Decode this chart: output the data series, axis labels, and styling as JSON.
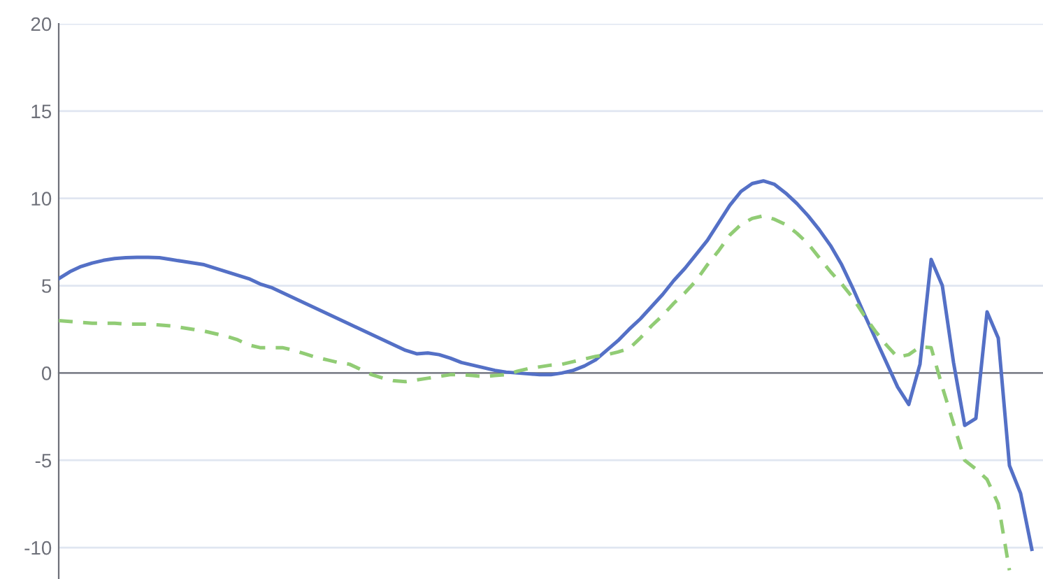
{
  "chart_data": {
    "type": "line",
    "relative": false,
    "categories": [
      null,
      null,
      null,
      null,
      null,
      null,
      null,
      null,
      null,
      null,
      null,
      null,
      null,
      null,
      null,
      null,
      null,
      null,
      null,
      null,
      null,
      null,
      null,
      null,
      null,
      null,
      null,
      null,
      null,
      null,
      null,
      null,
      null,
      null,
      null,
      null,
      null,
      null,
      null,
      null,
      null,
      null,
      null,
      null,
      null,
      null,
      null,
      null,
      null,
      null,
      null,
      null,
      null,
      null,
      null,
      null,
      null,
      null,
      null,
      null,
      null,
      null,
      null,
      null,
      null,
      null,
      null,
      null,
      null,
      null,
      null,
      null,
      null,
      null,
      null,
      null,
      null,
      null,
      null,
      null,
      null,
      null,
      null,
      null,
      null,
      null,
      null,
      null
    ],
    "series": [
      {
        "color": "#5470c6",
        "line_style": "solid",
        "values": [
          5.4,
          5.8,
          6.1,
          6.3,
          6.45,
          6.55,
          6.6,
          6.62,
          6.62,
          6.6,
          6.5,
          6.4,
          6.3,
          6.2,
          6.0,
          5.8,
          5.6,
          5.4,
          5.1,
          4.9,
          4.6,
          4.3,
          4.0,
          3.7,
          3.4,
          3.1,
          2.8,
          2.5,
          2.2,
          1.9,
          1.6,
          1.3,
          1.1,
          1.15,
          1.05,
          0.85,
          0.6,
          0.45,
          0.3,
          0.15,
          0.05,
          0.0,
          -0.05,
          -0.1,
          -0.1,
          0.0,
          0.15,
          0.4,
          0.75,
          1.3,
          1.85,
          2.5,
          3.1,
          3.8,
          4.5,
          5.3,
          6.0,
          6.8,
          7.6,
          8.6,
          9.6,
          10.4,
          10.85,
          11.0,
          10.8,
          10.3,
          9.7,
          9.0,
          8.2,
          7.3,
          6.2,
          4.85,
          3.4,
          2.0,
          0.6,
          -0.8,
          -1.8,
          0.5,
          6.5,
          5.0,
          0.6,
          -3.0,
          -2.6,
          3.5,
          2.0,
          -5.3,
          -6.9,
          -10.1
        ]
      },
      {
        "color": "#91cc75",
        "line_style": "dashed",
        "values": [
          3.0,
          2.95,
          2.9,
          2.85,
          2.85,
          2.85,
          2.8,
          2.8,
          2.8,
          2.75,
          2.7,
          2.6,
          2.5,
          2.4,
          2.25,
          2.1,
          1.9,
          1.6,
          1.45,
          1.45,
          1.45,
          1.3,
          1.1,
          0.9,
          0.75,
          0.6,
          0.5,
          0.2,
          -0.1,
          -0.3,
          -0.45,
          -0.5,
          -0.4,
          -0.3,
          -0.2,
          -0.1,
          -0.1,
          -0.15,
          -0.2,
          -0.15,
          -0.1,
          0.1,
          0.25,
          0.35,
          0.45,
          0.5,
          0.65,
          0.8,
          0.95,
          1.05,
          1.2,
          1.4,
          2.0,
          2.7,
          3.3,
          4.0,
          4.6,
          5.3,
          6.2,
          7.0,
          7.9,
          8.5,
          8.85,
          9.0,
          8.8,
          8.5,
          8.0,
          7.4,
          6.6,
          5.8,
          5.1,
          4.3,
          3.3,
          2.4,
          1.6,
          0.9,
          1.05,
          1.5,
          1.45,
          -0.8,
          -2.9,
          -5.0,
          -5.5,
          -6.1,
          -7.5,
          -11.3,
          null,
          null
        ]
      }
    ],
    "ylim": [
      -11.8,
      20
    ],
    "yticks": [
      -10,
      -5,
      0,
      5,
      10,
      15,
      20
    ],
    "grid": "y",
    "marker": "none"
  }
}
